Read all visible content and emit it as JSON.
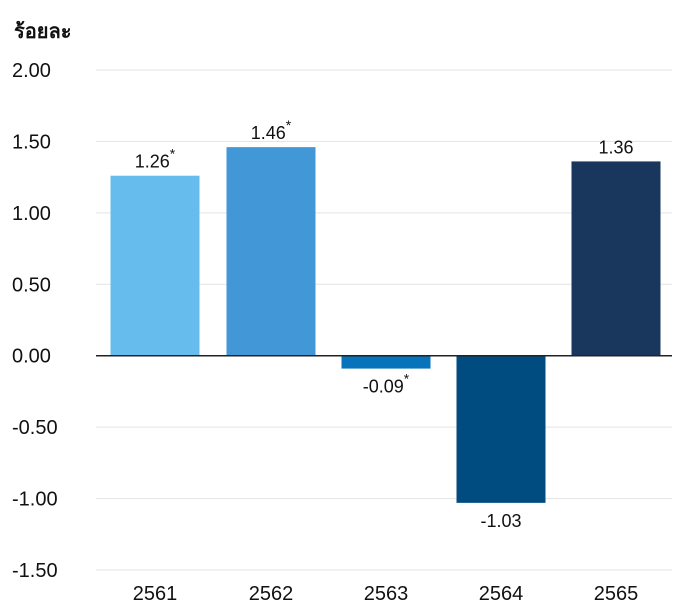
{
  "chart_data": {
    "type": "bar",
    "ylabel": "ร้อยละ",
    "xlabel": "",
    "categories": [
      "2561",
      "2562",
      "2563",
      "2564",
      "2565"
    ],
    "values": [
      1.26,
      1.46,
      -0.09,
      -1.03,
      1.36
    ],
    "data_labels": [
      "1.26",
      "1.46",
      "-0.09",
      "-1.03",
      "1.36"
    ],
    "notes": [
      "*",
      "*",
      "*",
      "",
      ""
    ],
    "colors": [
      "#66bcec",
      "#4297d6",
      "#0773bb",
      "#004c80",
      "#19365c"
    ],
    "ylim": [
      -1.5,
      2.0
    ],
    "yticks": [
      2.0,
      1.5,
      1.0,
      0.5,
      0.0,
      -0.5,
      -1.0,
      -1.5
    ],
    "ytick_labels": [
      "2.00",
      "1.50",
      "1.00",
      "0.50",
      "0.00",
      "-0.50",
      "-1.00",
      "-1.50"
    ],
    "grid": true,
    "legend": "none"
  }
}
